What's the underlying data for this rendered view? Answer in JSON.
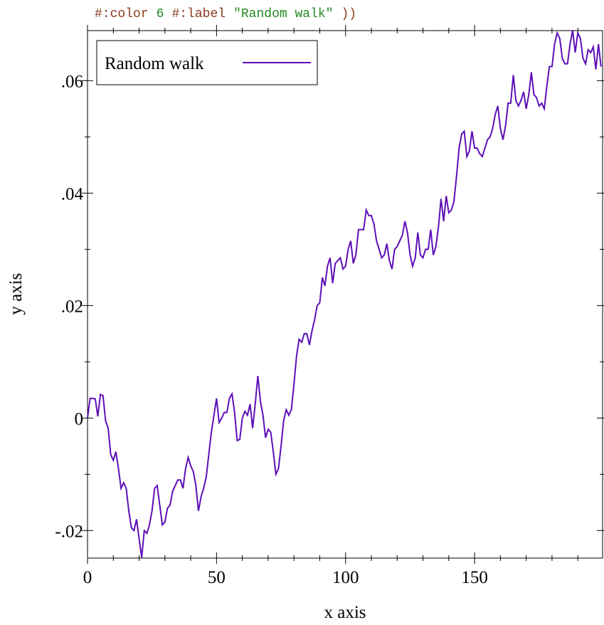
{
  "code": [
    {
      "text": "#:color",
      "color": "#8b3a1e"
    },
    {
      "text": "6",
      "color": "#228b22"
    },
    {
      "text": "#:label",
      "color": "#8b3a1e"
    },
    {
      "text": "\"Random walk\"",
      "color": "#228b22"
    },
    {
      "text": "))",
      "color": "#8b3a1e"
    }
  ],
  "chart_data": {
    "type": "line",
    "xlabel": "x axis",
    "ylabel": "y axis",
    "legend": "top-left",
    "x": [
      0,
      1,
      2,
      3,
      4,
      5,
      6,
      7,
      8,
      9,
      10,
      11,
      12,
      13,
      14,
      15,
      16,
      17,
      18,
      19,
      20,
      21,
      22,
      23,
      24,
      25,
      26,
      27,
      28,
      29,
      30,
      31,
      32,
      33,
      34,
      35,
      36,
      37,
      38,
      39,
      40,
      41,
      42,
      43,
      44,
      45,
      46,
      47,
      48,
      49,
      50,
      51,
      52,
      53,
      54,
      55,
      56,
      57,
      58,
      59,
      60,
      61,
      62,
      63,
      64,
      65,
      66,
      67,
      68,
      69,
      70,
      71,
      72,
      73,
      74,
      75,
      76,
      77,
      78,
      79,
      80,
      81,
      82,
      83,
      84,
      85,
      86,
      87,
      88,
      89,
      90,
      91,
      92,
      93,
      94,
      95,
      96,
      97,
      98,
      99,
      100,
      101,
      102,
      103,
      104,
      105,
      106,
      107,
      108,
      109,
      110,
      111,
      112,
      113,
      114,
      115,
      116,
      117,
      118,
      119,
      120,
      121,
      122,
      123,
      124,
      125,
      126,
      127,
      128,
      129,
      130,
      131,
      132,
      133,
      134,
      135,
      136,
      137,
      138,
      139,
      140,
      141,
      142,
      143,
      144,
      145,
      146,
      147,
      148,
      149,
      150,
      151,
      152,
      153,
      154,
      155,
      156,
      157,
      158,
      159,
      160,
      161,
      162,
      163,
      164,
      165,
      166,
      167,
      168,
      169,
      170,
      171,
      172,
      173,
      174,
      175,
      176,
      177,
      178,
      179,
      180,
      181,
      182,
      183,
      184,
      185,
      186,
      187,
      188,
      189,
      190,
      191,
      192,
      193,
      194,
      195,
      196,
      197,
      198,
      199
    ],
    "series": [
      {
        "name": "Random walk",
        "color": "#5d0fb8",
        "values": [
          0.0,
          0.0035,
          0.0035,
          0.0034,
          0.0003,
          0.0042,
          0.004,
          -0.0005,
          -0.0018,
          -0.0065,
          -0.0075,
          -0.006,
          -0.009,
          -0.0125,
          -0.0115,
          -0.0125,
          -0.0165,
          -0.0195,
          -0.02,
          -0.018,
          -0.0215,
          -0.0248,
          -0.02,
          -0.0205,
          -0.019,
          -0.0165,
          -0.0125,
          -0.012,
          -0.0155,
          -0.019,
          -0.0185,
          -0.016,
          -0.0155,
          -0.013,
          -0.012,
          -0.011,
          -0.011,
          -0.0125,
          -0.009,
          -0.007,
          -0.0085,
          -0.0095,
          -0.012,
          -0.0165,
          -0.014,
          -0.0125,
          -0.0105,
          -0.0065,
          -0.0025,
          0.0005,
          0.0035,
          -0.0008,
          0.0,
          0.001,
          0.001,
          0.0035,
          0.0043,
          0.001,
          -0.004,
          -0.0038,
          0.0,
          0.0012,
          0.0005,
          0.0025,
          -0.0018,
          0.0025,
          0.0075,
          0.003,
          0.0005,
          -0.0035,
          -0.002,
          -0.0025,
          -0.006,
          -0.01,
          -0.009,
          -0.005,
          -0.0005,
          0.0015,
          0.0005,
          0.0015,
          0.006,
          0.011,
          0.014,
          0.0135,
          0.015,
          0.015,
          0.013,
          0.0155,
          0.0175,
          0.02,
          0.0205,
          0.025,
          0.0235,
          0.027,
          0.0285,
          0.024,
          0.0275,
          0.028,
          0.0285,
          0.0265,
          0.027,
          0.03,
          0.0315,
          0.0275,
          0.029,
          0.0335,
          0.0335,
          0.0335,
          0.037,
          0.036,
          0.036,
          0.0345,
          0.0315,
          0.03,
          0.0285,
          0.029,
          0.031,
          0.028,
          0.0265,
          0.03,
          0.0305,
          0.0315,
          0.0325,
          0.035,
          0.033,
          0.029,
          0.027,
          0.0285,
          0.033,
          0.029,
          0.0285,
          0.03,
          0.03,
          0.0335,
          0.029,
          0.0305,
          0.034,
          0.039,
          0.035,
          0.0395,
          0.0365,
          0.037,
          0.0385,
          0.043,
          0.048,
          0.0505,
          0.051,
          0.0465,
          0.0475,
          0.051,
          0.048,
          0.048,
          0.047,
          0.0465,
          0.048,
          0.0495,
          0.05,
          0.0515,
          0.054,
          0.0555,
          0.0515,
          0.0495,
          0.052,
          0.056,
          0.056,
          0.061,
          0.0565,
          0.0555,
          0.0565,
          0.058,
          0.055,
          0.0575,
          0.0615,
          0.0575,
          0.057,
          0.0555,
          0.056,
          0.055,
          0.059,
          0.0625,
          0.0625,
          0.0665,
          0.0685,
          0.0675,
          0.064,
          0.063,
          0.063,
          0.0665,
          0.069,
          0.065,
          0.0685,
          0.0675,
          0.064,
          0.063,
          0.0655,
          0.065,
          0.066,
          0.062,
          0.0665,
          0.0625
        ]
      }
    ],
    "xlim": [
      0,
      199.6
    ],
    "ylim": [
      -0.0249,
      0.0689
    ],
    "xticks": [
      0,
      50,
      100,
      150
    ],
    "xminorticks": [
      10,
      20,
      30,
      40,
      60,
      70,
      80,
      90,
      110,
      120,
      130,
      140,
      160,
      170,
      180,
      190
    ],
    "yticks": [
      {
        "value": -0.02,
        "label": "-.02"
      },
      0,
      {
        "value": 0.02,
        "label": ".02"
      },
      {
        "value": 0.04,
        "label": ".04"
      },
      {
        "value": 0.06,
        "label": ".06"
      }
    ],
    "yminorticks": [
      -0.01,
      0.01,
      0.03,
      0.05
    ]
  }
}
